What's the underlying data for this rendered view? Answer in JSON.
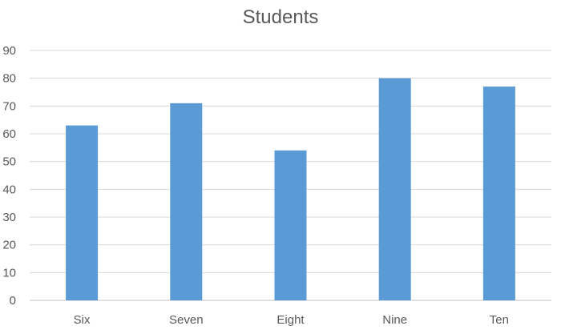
{
  "chart_data": {
    "type": "bar",
    "title": "Students",
    "xlabel": "",
    "ylabel": "",
    "categories": [
      "Six",
      "Seven",
      "Eight",
      "Nine",
      "Ten"
    ],
    "values": [
      63,
      71,
      54,
      80,
      77
    ],
    "ylim": [
      0,
      90
    ],
    "yticks": [
      "0",
      "10",
      "20",
      "30",
      "40",
      "50",
      "60",
      "70",
      "80",
      "90"
    ],
    "grid": true,
    "legend": "none",
    "bar_color": "#5B9BD5",
    "gridline_color": "#D9D9D9",
    "axis_color": "#BFBFBF",
    "text_color": "#595959"
  }
}
